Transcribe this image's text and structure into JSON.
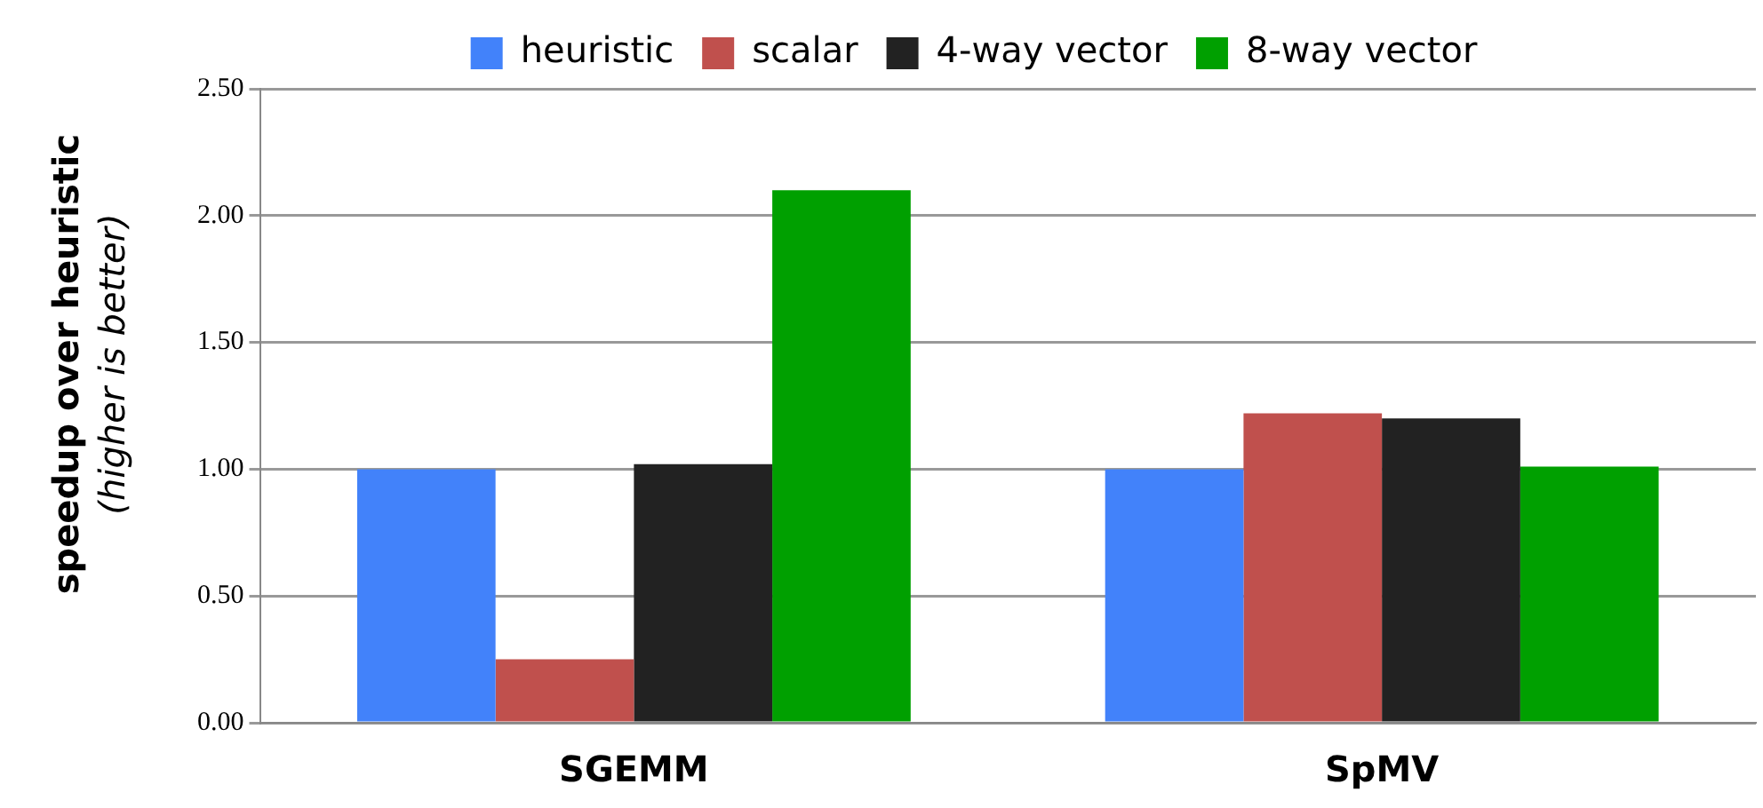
{
  "chart_data": {
    "type": "bar",
    "ylabel": "speedup over heuristic\n(higher is better)",
    "categories": [
      "SGEMM",
      "SpMV"
    ],
    "series": [
      {
        "name": "heuristic",
        "color": "#4282fa",
        "values": [
          1.0,
          1.0
        ]
      },
      {
        "name": "scalar",
        "color": "#c0504d",
        "values": [
          0.25,
          1.22
        ]
      },
      {
        "name": "4-way vector",
        "color": "#222222",
        "values": [
          1.02,
          1.2
        ]
      },
      {
        "name": "8-way vector",
        "color": "#00a000",
        "values": [
          2.1,
          1.01
        ]
      }
    ],
    "ylim": [
      0,
      2.5
    ],
    "yticks": [
      {
        "value": 0,
        "label": "0.00"
      },
      {
        "value": 0.5,
        "label": "0.50"
      },
      {
        "value": 1,
        "label": "1.00"
      },
      {
        "value": 1.5,
        "label": "1.50"
      },
      {
        "value": 2,
        "label": "2.00"
      },
      {
        "value": 2.5,
        "label": "2.50"
      }
    ],
    "grid": "y",
    "legend": "top"
  }
}
